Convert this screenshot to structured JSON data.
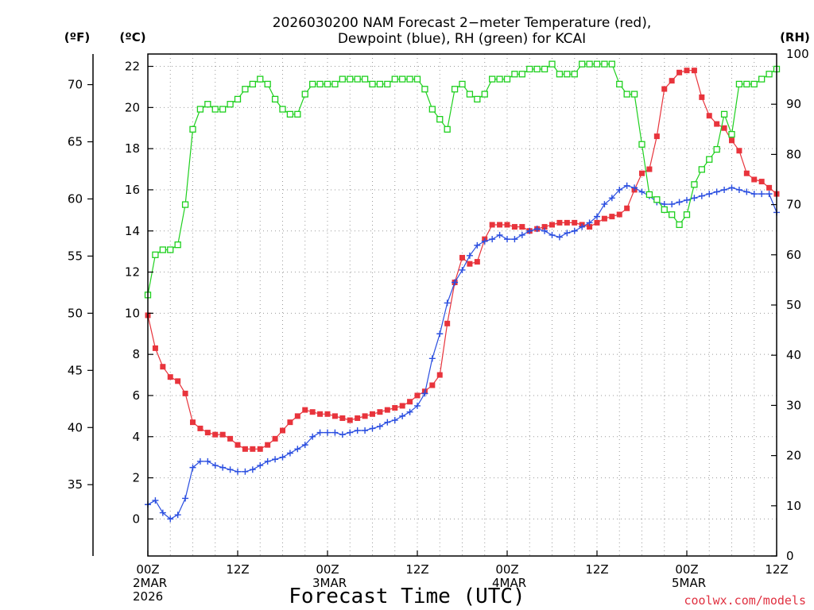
{
  "chart_data": {
    "type": "line",
    "title": "2026030200 NAM Forecast 2−meter Temperature (red),",
    "title_line2": "Dewpoint (blue), RH (green) for KCAI",
    "xlabel": "Forecast Time (UTC)",
    "credit": "coolwx.com/models",
    "units": {
      "fahrenheit": "(ºF)",
      "celsius": "(ºC)",
      "rh": "(RH)"
    },
    "colors": {
      "temperature": "#e8343c",
      "dewpoint": "#2a4ee0",
      "rh": "#1ed01e"
    },
    "x_unit": "forecast hour",
    "xlim": [
      0,
      84
    ],
    "ylim_celsius": [
      -1.8,
      22.6
    ],
    "ylim_rh": [
      0,
      100
    ],
    "x_ticks": [
      {
        "hour": 0,
        "lines": [
          "00Z",
          "2MAR",
          "2026"
        ]
      },
      {
        "hour": 12,
        "lines": [
          "12Z"
        ]
      },
      {
        "hour": 24,
        "lines": [
          "00Z",
          "3MAR"
        ]
      },
      {
        "hour": 36,
        "lines": [
          "12Z"
        ]
      },
      {
        "hour": 48,
        "lines": [
          "00Z",
          "4MAR"
        ]
      },
      {
        "hour": 60,
        "lines": [
          "12Z"
        ]
      },
      {
        "hour": 72,
        "lines": [
          "00Z",
          "5MAR"
        ]
      },
      {
        "hour": 84,
        "lines": [
          "12Z"
        ]
      }
    ],
    "celsius_ticks": [
      0,
      2,
      4,
      6,
      8,
      10,
      12,
      14,
      16,
      18,
      20,
      22
    ],
    "fahrenheit_ticks": [
      35,
      40,
      45,
      50,
      55,
      60,
      65,
      70
    ],
    "rh_ticks": [
      0,
      10,
      20,
      30,
      40,
      50,
      60,
      70,
      80,
      90,
      100
    ],
    "hours": [
      0,
      1,
      2,
      3,
      4,
      5,
      6,
      7,
      8,
      9,
      10,
      11,
      12,
      13,
      14,
      15,
      16,
      17,
      18,
      19,
      20,
      21,
      22,
      23,
      24,
      25,
      26,
      27,
      28,
      29,
      30,
      31,
      32,
      33,
      34,
      35,
      36,
      37,
      38,
      39,
      40,
      41,
      42,
      43,
      44,
      45,
      46,
      47,
      48,
      49,
      50,
      51,
      52,
      53,
      54,
      55,
      56,
      57,
      58,
      59,
      60,
      61,
      62,
      63,
      64,
      65,
      66,
      67,
      68,
      69,
      70,
      71,
      72,
      73,
      74,
      75,
      76,
      77,
      78,
      79,
      80,
      81,
      82,
      83,
      84
    ],
    "series": [
      {
        "name": "Temperature",
        "unit": "C",
        "marker": "filled-square",
        "values": [
          9.9,
          8.3,
          7.4,
          6.9,
          6.7,
          6.1,
          4.7,
          4.4,
          4.2,
          4.1,
          4.1,
          3.9,
          3.6,
          3.4,
          3.4,
          3.4,
          3.6,
          3.9,
          4.3,
          4.7,
          5.0,
          5.3,
          5.2,
          5.1,
          5.1,
          5.0,
          4.9,
          4.8,
          4.9,
          5.0,
          5.1,
          5.2,
          5.3,
          5.4,
          5.5,
          5.7,
          6.0,
          6.2,
          6.5,
          7.0,
          9.5,
          11.5,
          12.7,
          12.4,
          12.5,
          13.6,
          14.3,
          14.3,
          14.3,
          14.2,
          14.2,
          14.0,
          14.1,
          14.2,
          14.3,
          14.4,
          14.4,
          14.4,
          14.3,
          14.2,
          14.4,
          14.6,
          14.7,
          14.8,
          15.1,
          16.0,
          16.8,
          17.0,
          18.6,
          20.9,
          21.3,
          21.7,
          21.8,
          21.8,
          20.5,
          19.6,
          19.2,
          19.0,
          18.4,
          17.9,
          16.8,
          16.5,
          16.4,
          16.1,
          15.8
        ]
      },
      {
        "name": "Dewpoint",
        "unit": "C",
        "marker": "plus",
        "values": [
          0.7,
          0.9,
          0.3,
          0.0,
          0.2,
          1.0,
          2.5,
          2.8,
          2.8,
          2.6,
          2.5,
          2.4,
          2.3,
          2.3,
          2.4,
          2.6,
          2.8,
          2.9,
          3.0,
          3.2,
          3.4,
          3.6,
          4.0,
          4.2,
          4.2,
          4.2,
          4.1,
          4.2,
          4.3,
          4.3,
          4.4,
          4.5,
          4.7,
          4.8,
          5.0,
          5.2,
          5.5,
          6.1,
          7.8,
          9.0,
          10.5,
          11.5,
          12.1,
          12.8,
          13.3,
          13.5,
          13.6,
          13.8,
          13.6,
          13.6,
          13.8,
          14.0,
          14.1,
          14.0,
          13.8,
          13.7,
          13.9,
          14.0,
          14.2,
          14.4,
          14.7,
          15.3,
          15.6,
          16.0,
          16.2,
          16.1,
          15.9,
          15.7,
          15.4,
          15.3,
          15.3,
          15.4,
          15.5,
          15.6,
          15.7,
          15.8,
          15.9,
          16.0,
          16.1,
          16.0,
          15.9,
          15.8,
          15.8,
          15.8,
          14.9
        ]
      },
      {
        "name": "RH",
        "unit": "%",
        "marker": "open-square",
        "values": [
          52,
          60,
          61,
          61,
          62,
          70,
          85,
          89,
          90,
          89,
          89,
          90,
          91,
          93,
          94,
          95,
          94,
          91,
          89,
          88,
          88,
          92,
          94,
          94,
          94,
          94,
          95,
          95,
          95,
          95,
          94,
          94,
          94,
          95,
          95,
          95,
          95,
          93,
          89,
          87,
          85,
          93,
          94,
          92,
          91,
          92,
          95,
          95,
          95,
          96,
          96,
          97,
          97,
          97,
          98,
          96,
          96,
          96,
          98,
          98,
          98,
          98,
          98,
          94,
          92,
          92,
          82,
          72,
          71,
          69,
          68,
          66,
          68,
          74,
          77,
          79,
          81,
          88,
          84,
          94,
          94,
          94,
          95,
          96,
          97
        ]
      }
    ]
  }
}
